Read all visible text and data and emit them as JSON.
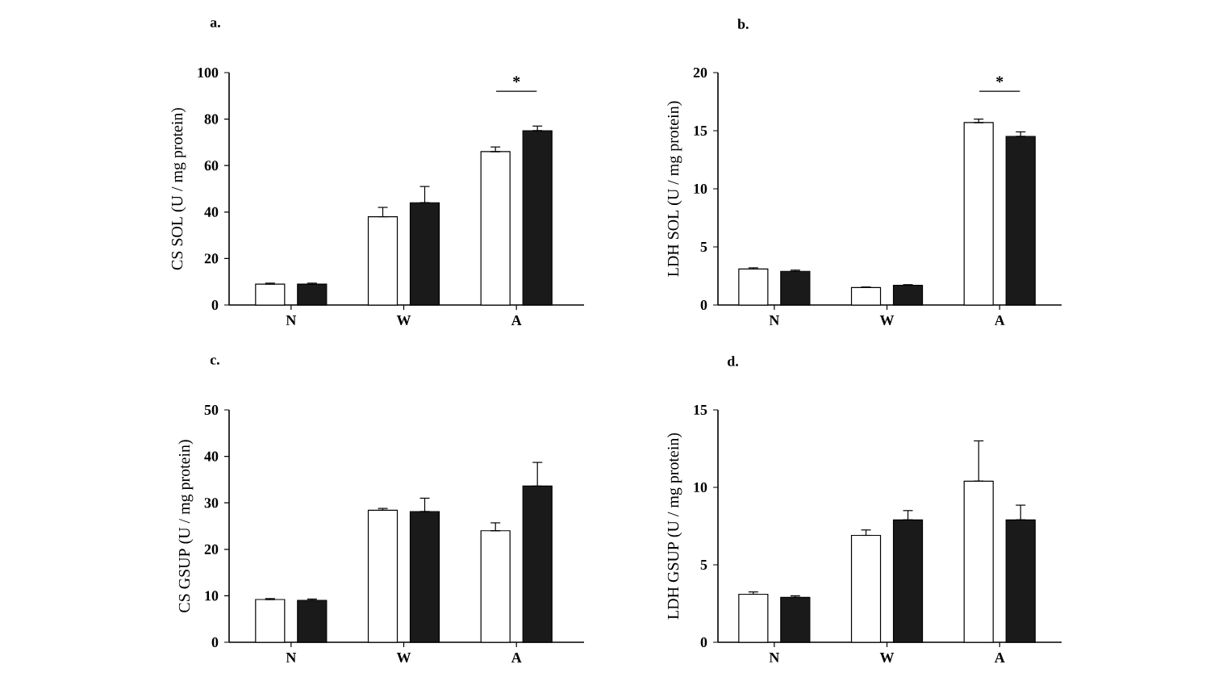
{
  "chart_data": [
    {
      "type": "bar",
      "title": "a.",
      "ylabel": "CS  SOL (U / mg  protein)",
      "categories": [
        "N",
        "W",
        "A"
      ],
      "series": [
        {
          "color": "#ffffff",
          "values": [
            9,
            38,
            66
          ],
          "errors": [
            [
              9,
              9.4
            ],
            [
              38,
              42
            ],
            [
              66,
              68
            ]
          ]
        },
        {
          "color": "#1a1a1a",
          "values": [
            9,
            44,
            75
          ],
          "errors": [
            [
              9,
              9.4
            ],
            [
              44,
              51
            ],
            [
              75,
              77
            ]
          ]
        }
      ],
      "ylim": [
        0,
        100
      ],
      "yticks": [
        0,
        20,
        40,
        60,
        80,
        100
      ],
      "grid": false,
      "annotations": [
        "*"
      ]
    },
    {
      "type": "bar",
      "title": "b.",
      "ylabel": "LDH  SOL (U / mg  protein)",
      "categories": [
        "N",
        "W",
        "A"
      ],
      "series": [
        {
          "color": "#ffffff",
          "values": [
            3.1,
            1.5,
            15.7
          ],
          "errors": [
            [
              3.1,
              3.2
            ],
            [
              1.5,
              1.55
            ],
            [
              15.7,
              16.0
            ]
          ]
        },
        {
          "color": "#1a1a1a",
          "values": [
            2.9,
            1.7,
            14.5
          ],
          "errors": [
            [
              2.9,
              3.0
            ],
            [
              1.7,
              1.75
            ],
            [
              14.5,
              14.9
            ]
          ]
        }
      ],
      "ylim": [
        0,
        20
      ],
      "yticks": [
        0,
        5,
        10,
        15,
        20
      ],
      "grid": false,
      "annotations": [
        "*"
      ]
    },
    {
      "type": "bar",
      "title": "c.",
      "ylabel": "CS GSUP (U / mg  protein)",
      "categories": [
        "N",
        "W",
        "A"
      ],
      "series": [
        {
          "color": "#ffffff",
          "values": [
            9.2,
            28.4,
            24
          ],
          "errors": [
            [
              9.2,
              9.4
            ],
            [
              28.4,
              28.8
            ],
            [
              24,
              25.7
            ]
          ]
        },
        {
          "color": "#1a1a1a",
          "values": [
            9.0,
            28.1,
            33.6
          ],
          "errors": [
            [
              9.0,
              9.3
            ],
            [
              28.1,
              31
            ],
            [
              33.6,
              38.7
            ]
          ]
        }
      ],
      "ylim": [
        0,
        50
      ],
      "yticks": [
        0,
        10,
        20,
        30,
        40,
        50
      ],
      "grid": false
    },
    {
      "type": "bar",
      "title": "d.",
      "ylabel": "LDH GSUP (U / mg  protein)",
      "categories": [
        "N",
        "W",
        "A"
      ],
      "series": [
        {
          "color": "#ffffff",
          "values": [
            3.1,
            6.9,
            10.4
          ],
          "errors": [
            [
              3.1,
              3.25
            ],
            [
              6.9,
              7.25
            ],
            [
              10.4,
              13.0
            ]
          ]
        },
        {
          "color": "#1a1a1a",
          "values": [
            2.9,
            7.9,
            7.9
          ],
          "errors": [
            [
              2.9,
              3.0
            ],
            [
              7.9,
              8.5
            ],
            [
              7.9,
              8.85
            ]
          ]
        }
      ],
      "ylim": [
        0,
        15
      ],
      "yticks": [
        0,
        5,
        10,
        15
      ],
      "grid": false
    }
  ]
}
